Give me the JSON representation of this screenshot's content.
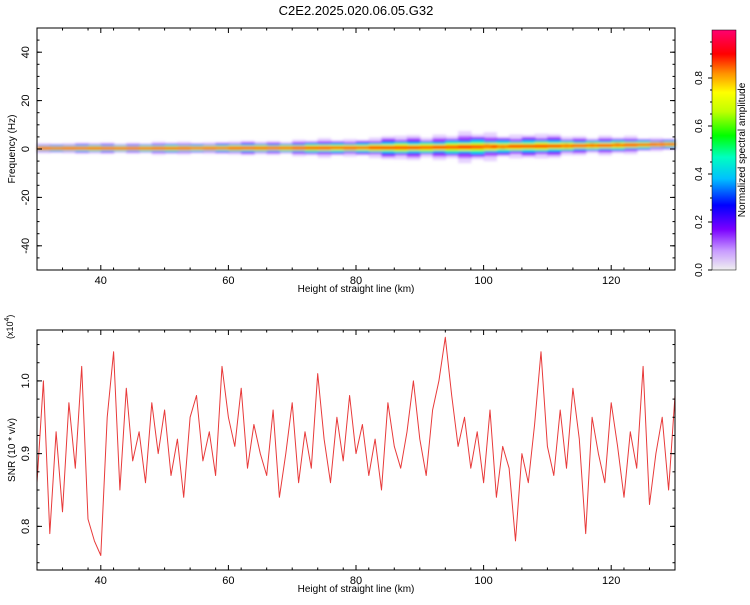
{
  "title": "C2E2.2025.020.06.05.G32",
  "chart_data": [
    {
      "type": "heatmap",
      "xlabel": "Height of straight line (km)",
      "ylabel": "Frequency (Hz)",
      "xlim": [
        30,
        130
      ],
      "ylim": [
        -50,
        50
      ],
      "xticks": [
        "40",
        "60",
        "80",
        "100",
        "120"
      ],
      "yticks": [
        "-40",
        "-20",
        "0",
        "20",
        "40"
      ],
      "colorbar": {
        "label": "Normalized spectral amplitude",
        "range": [
          0.0,
          1.0
        ],
        "ticks": [
          "0.0",
          "0.2",
          "0.4",
          "0.6",
          "0.8"
        ],
        "colors": [
          "#f0f0f0",
          "#8a00ff",
          "#0000ff",
          "#00ffff",
          "#00ff00",
          "#ffff00",
          "#ff8000",
          "#ff0000",
          "#ff0060"
        ]
      },
      "ridge": {
        "x": [
          30,
          40,
          50,
          60,
          70,
          80,
          90,
          100,
          110,
          120,
          130
        ],
        "center_freq": [
          0.3,
          0.3,
          0.3,
          0.4,
          0.4,
          0.5,
          0.6,
          0.9,
          1.2,
          1.5,
          2.0
        ],
        "spread_hz": [
          1.5,
          1.6,
          1.8,
          2.0,
          2.5,
          3.2,
          4.5,
          5.0,
          4.0,
          3.0,
          2.0
        ]
      },
      "grid": false
    },
    {
      "type": "line",
      "xlabel": "Height of straight line (km)",
      "ylabel": "SNR (10 * v/v)",
      "yscale_label": "(x10",
      "yscale_exp": "4",
      "xlim": [
        30,
        130
      ],
      "ylim": [
        0.74,
        1.07
      ],
      "xticks": [
        "40",
        "60",
        "80",
        "100",
        "120"
      ],
      "yticks": [
        "0.8",
        "0.9",
        "1.0"
      ],
      "series": [
        {
          "color": "#e83a3a",
          "x": [
            30,
            31,
            32,
            33,
            34,
            35,
            36,
            37,
            38,
            39,
            40,
            41,
            42,
            43,
            44,
            45,
            46,
            47,
            48,
            49,
            50,
            51,
            52,
            53,
            54,
            55,
            56,
            57,
            58,
            59,
            60,
            61,
            62,
            63,
            64,
            65,
            66,
            67,
            68,
            69,
            70,
            71,
            72,
            73,
            74,
            75,
            76,
            77,
            78,
            79,
            80,
            81,
            82,
            83,
            84,
            85,
            86,
            87,
            88,
            89,
            90,
            91,
            92,
            93,
            94,
            95,
            96,
            97,
            98,
            99,
            100,
            101,
            102,
            103,
            104,
            105,
            106,
            107,
            108,
            109,
            110,
            111,
            112,
            113,
            114,
            115,
            116,
            117,
            118,
            119,
            120,
            121,
            122,
            123,
            124,
            125,
            126,
            127,
            128,
            129,
            130
          ],
          "values": [
            0.86,
            1.0,
            0.79,
            0.93,
            0.82,
            0.97,
            0.88,
            1.02,
            0.81,
            0.78,
            0.76,
            0.95,
            1.04,
            0.85,
            0.99,
            0.89,
            0.93,
            0.86,
            0.97,
            0.9,
            0.96,
            0.87,
            0.92,
            0.84,
            0.95,
            0.98,
            0.89,
            0.93,
            0.87,
            1.02,
            0.95,
            0.91,
            0.99,
            0.88,
            0.94,
            0.9,
            0.87,
            0.96,
            0.84,
            0.9,
            0.97,
            0.86,
            0.93,
            0.88,
            1.01,
            0.92,
            0.86,
            0.95,
            0.89,
            0.98,
            0.9,
            0.94,
            0.87,
            0.92,
            0.85,
            0.97,
            0.91,
            0.88,
            0.93,
            1.0,
            0.92,
            0.87,
            0.96,
            1.0,
            1.06,
            0.98,
            0.91,
            0.95,
            0.88,
            0.93,
            0.86,
            0.96,
            0.84,
            0.91,
            0.88,
            0.78,
            0.9,
            0.86,
            0.94,
            1.04,
            0.91,
            0.87,
            0.96,
            0.88,
            0.99,
            0.92,
            0.79,
            0.95,
            0.9,
            0.86,
            0.97,
            0.91,
            0.84,
            0.93,
            0.88,
            1.02,
            0.83,
            0.9,
            0.95,
            0.85,
            0.98
          ]
        }
      ],
      "grid": false
    }
  ]
}
